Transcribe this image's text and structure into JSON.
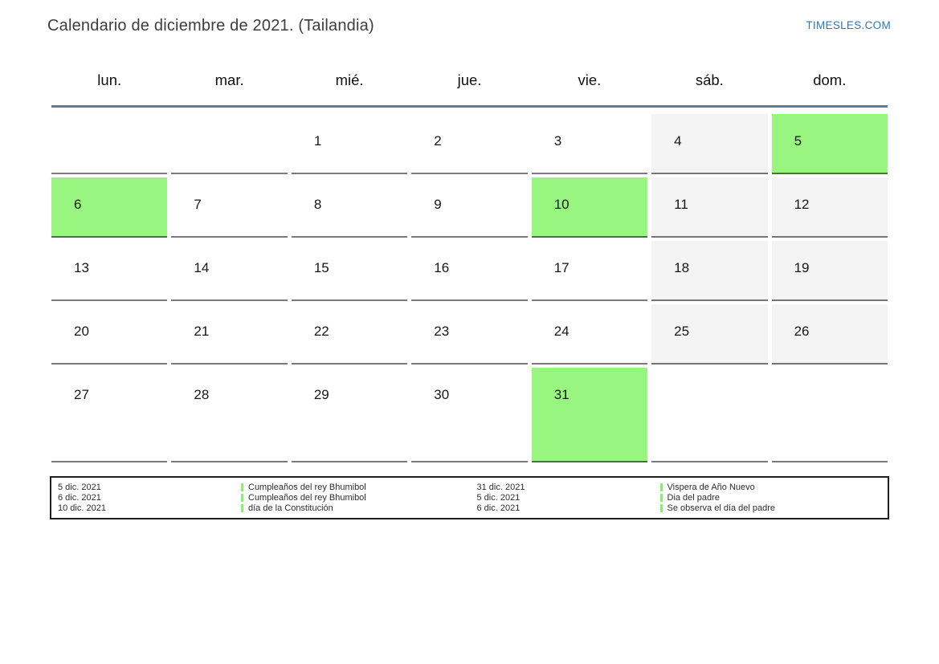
{
  "page": {
    "title": "Calendario de diciembre de 2021. (Tailandia)",
    "site_link": "TIMESLES.COM"
  },
  "calendar": {
    "day_headers": [
      "lun.",
      "mar.",
      "mié.",
      "jue.",
      "vie.",
      "sáb.",
      "dom."
    ],
    "weeks": [
      [
        "",
        "",
        "1",
        "2",
        "3",
        "4",
        "5"
      ],
      [
        "6",
        "7",
        "8",
        "9",
        "10",
        "11",
        "12"
      ],
      [
        "13",
        "14",
        "15",
        "16",
        "17",
        "18",
        "19"
      ],
      [
        "20",
        "21",
        "22",
        "23",
        "24",
        "25",
        "26"
      ],
      [
        "27",
        "28",
        "29",
        "30",
        "31",
        "",
        ""
      ]
    ],
    "highlighted_days": [
      5,
      6,
      10,
      31
    ],
    "weekend_days": [
      4,
      11,
      12,
      18,
      19,
      25,
      26
    ],
    "colors": {
      "highlight_green": "#98f580",
      "weekend_gray": "#f4f4f4",
      "header_line_blue": "#5a7ca3",
      "link_blue": "#2878be",
      "event_marker_green": "#8cee70"
    }
  },
  "legend": {
    "left": [
      {
        "date": "5 dic. 2021",
        "event": "Cumpleaños del rey Bhumibol"
      },
      {
        "date": "6 dic. 2021",
        "event": "Cumpleaños del rey Bhumibol"
      },
      {
        "date": "10 dic. 2021",
        "event": "día de la Constitución"
      }
    ],
    "right": [
      {
        "date": "31 dic. 2021",
        "event": "Vispera de Año Nuevo"
      },
      {
        "date": "5 dic. 2021",
        "event": "Dia del padre"
      },
      {
        "date": "6 dic. 2021",
        "event": "Se observa el día del padre"
      }
    ]
  }
}
